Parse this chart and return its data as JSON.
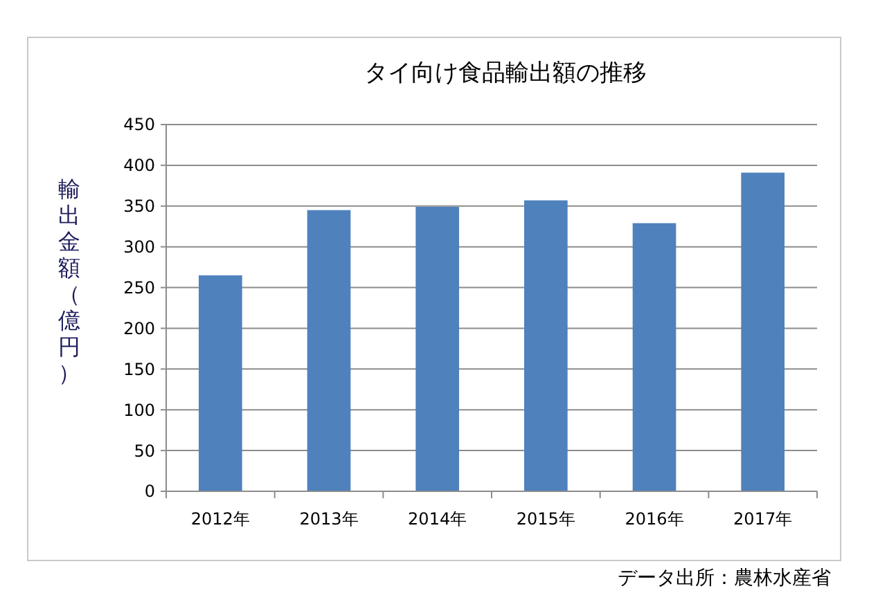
{
  "chart_data": {
    "type": "bar",
    "title": "タイ向け食品輸出額の推移",
    "ylabel": "輸出金額（億円）",
    "categories": [
      "2012年",
      "2013年",
      "2014年",
      "2015年",
      "2016年",
      "2017年"
    ],
    "values": [
      265,
      345,
      349,
      357,
      329,
      391
    ],
    "color": "#4f81bd",
    "ylim": [
      0,
      450
    ],
    "yticks": [
      0,
      50,
      100,
      150,
      200,
      250,
      300,
      350,
      400,
      450
    ],
    "grid": "y",
    "annotations": [
      "データ出所：農林水産省"
    ]
  }
}
